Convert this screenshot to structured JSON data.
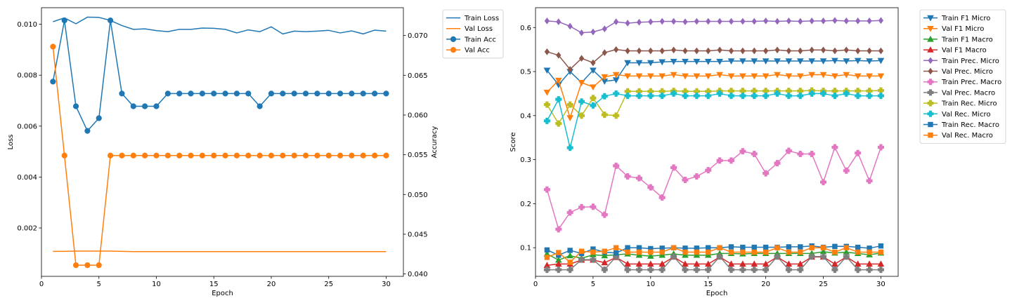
{
  "colors": {
    "blue": "#1f77b4",
    "orange": "#ff7f0e",
    "green": "#2ca02c",
    "red": "#d62728",
    "purple": "#9467bd",
    "brown": "#8c564b",
    "pink": "#e377c2",
    "gray": "#7f7f7f",
    "olive": "#bcbd22",
    "cyan": "#17becf"
  },
  "chart_data": [
    {
      "type": "line",
      "title": "",
      "xlabel": "Epoch",
      "ylabel": "Loss",
      "y2label": "Accuracy",
      "xlim": [
        0,
        31.5
      ],
      "ylim": [
        0.0001,
        0.01065
      ],
      "y2lim": [
        0.0397,
        0.0735
      ],
      "xticks": [
        0,
        5,
        10,
        15,
        20,
        25,
        30
      ],
      "yticks": [
        0.002,
        0.004,
        0.006,
        0.008,
        0.01
      ],
      "yticklabels": [
        "0.002",
        "0.004",
        "0.006",
        "0.008",
        "0.010"
      ],
      "y2ticks": [
        0.04,
        0.045,
        0.05,
        0.055,
        0.06,
        0.065,
        0.07
      ],
      "y2ticklabels": [
        "0.040",
        "0.045",
        "0.050",
        "0.055",
        "0.060",
        "0.065",
        "0.070"
      ],
      "grid": false,
      "legend_placement": "outside-right-top",
      "x": [
        1,
        2,
        3,
        4,
        5,
        6,
        7,
        8,
        9,
        10,
        11,
        12,
        13,
        14,
        15,
        16,
        17,
        18,
        19,
        20,
        21,
        22,
        23,
        24,
        25,
        26,
        27,
        28,
        29,
        30
      ],
      "series": [
        {
          "name": "Train Loss",
          "axis": "left",
          "color": "blue",
          "marker": "none",
          "values": [
            0.0101,
            0.01025,
            0.01002,
            0.01028,
            0.01027,
            0.01015,
            0.00995,
            0.0098,
            0.00982,
            0.00975,
            0.00971,
            0.0098,
            0.0098,
            0.00985,
            0.00984,
            0.0098,
            0.00966,
            0.00978,
            0.00971,
            0.0099,
            0.00962,
            0.00973,
            0.00971,
            0.00973,
            0.00976,
            0.00966,
            0.00974,
            0.00962,
            0.00977,
            0.00973
          ]
        },
        {
          "name": "Val Loss",
          "axis": "left",
          "color": "orange",
          "marker": "none",
          "values": [
            0.00108,
            0.00108,
            0.00109,
            0.00109,
            0.00109,
            0.00109,
            0.00108,
            0.00107,
            0.00107,
            0.00107,
            0.00107,
            0.00107,
            0.00107,
            0.00107,
            0.00107,
            0.00107,
            0.00107,
            0.00107,
            0.00107,
            0.00107,
            0.00107,
            0.00107,
            0.00107,
            0.00107,
            0.00107,
            0.00107,
            0.00107,
            0.00107,
            0.00107,
            0.00107
          ]
        },
        {
          "name": "Train Acc",
          "axis": "right",
          "color": "blue",
          "marker": "circle",
          "values": [
            0.0642,
            0.0719,
            0.0611,
            0.058,
            0.0596,
            0.0719,
            0.0627,
            0.0611,
            0.0611,
            0.0611,
            0.0627,
            0.0627,
            0.0627,
            0.0627,
            0.0627,
            0.0627,
            0.0627,
            0.0627,
            0.0611,
            0.0627,
            0.0627,
            0.0627,
            0.0627,
            0.0627,
            0.0627,
            0.0627,
            0.0627,
            0.0627,
            0.0627,
            0.0627
          ]
        },
        {
          "name": "Val Acc",
          "axis": "right",
          "color": "orange",
          "marker": "circle",
          "values": [
            0.0686,
            0.0549,
            0.0411,
            0.0411,
            0.0411,
            0.0549,
            0.0549,
            0.0549,
            0.0549,
            0.0549,
            0.0549,
            0.0549,
            0.0549,
            0.0549,
            0.0549,
            0.0549,
            0.0549,
            0.0549,
            0.0549,
            0.0549,
            0.0549,
            0.0549,
            0.0549,
            0.0549,
            0.0549,
            0.0549,
            0.0549,
            0.0549,
            0.0549,
            0.0549
          ]
        }
      ]
    },
    {
      "type": "line",
      "title": "",
      "xlabel": "Epoch",
      "ylabel": "Score",
      "xlim": [
        0,
        31.5
      ],
      "ylim": [
        0.035,
        0.645
      ],
      "xticks": [
        0,
        5,
        10,
        15,
        20,
        25,
        30
      ],
      "yticks": [
        0.1,
        0.2,
        0.3,
        0.4,
        0.5,
        0.6
      ],
      "yticklabels": [
        "0.1",
        "0.2",
        "0.3",
        "0.4",
        "0.5",
        "0.6"
      ],
      "grid": false,
      "legend_placement": "outside-right-top",
      "x": [
        1,
        2,
        3,
        4,
        5,
        6,
        7,
        8,
        9,
        10,
        11,
        12,
        13,
        14,
        15,
        16,
        17,
        18,
        19,
        20,
        21,
        22,
        23,
        24,
        25,
        26,
        27,
        28,
        29,
        30
      ],
      "series": [
        {
          "name": "Train F1 Micro",
          "color": "blue",
          "marker": "triangle-down",
          "values": [
            0.503,
            0.47,
            0.5,
            0.475,
            0.503,
            0.478,
            0.481,
            0.52,
            0.52,
            0.52,
            0.522,
            0.523,
            0.523,
            0.523,
            0.523,
            0.523,
            0.524,
            0.524,
            0.524,
            0.524,
            0.524,
            0.524,
            0.524,
            0.524,
            0.524,
            0.525,
            0.524,
            0.525,
            0.524,
            0.525
          ]
        },
        {
          "name": "Val F1 Micro",
          "color": "orange",
          "marker": "triangle-down",
          "values": [
            0.453,
            0.48,
            0.395,
            0.475,
            0.465,
            0.488,
            0.493,
            0.49,
            0.49,
            0.49,
            0.49,
            0.493,
            0.49,
            0.49,
            0.49,
            0.493,
            0.49,
            0.49,
            0.49,
            0.49,
            0.493,
            0.49,
            0.49,
            0.493,
            0.493,
            0.49,
            0.493,
            0.49,
            0.49,
            0.49
          ]
        },
        {
          "name": "Train F1 Macro",
          "color": "green",
          "marker": "triangle-up",
          "values": [
            0.086,
            0.072,
            0.082,
            0.076,
            0.084,
            0.082,
            0.084,
            0.086,
            0.083,
            0.081,
            0.083,
            0.086,
            0.083,
            0.083,
            0.083,
            0.087,
            0.087,
            0.086,
            0.087,
            0.087,
            0.087,
            0.087,
            0.087,
            0.087,
            0.091,
            0.088,
            0.09,
            0.087,
            0.084,
            0.088
          ]
        },
        {
          "name": "Val F1 Macro",
          "color": "red",
          "marker": "triangle-up",
          "values": [
            0.06,
            0.063,
            0.063,
            0.072,
            0.072,
            0.066,
            0.078,
            0.063,
            0.063,
            0.063,
            0.063,
            0.079,
            0.063,
            0.063,
            0.063,
            0.079,
            0.063,
            0.063,
            0.063,
            0.063,
            0.079,
            0.063,
            0.063,
            0.079,
            0.079,
            0.063,
            0.079,
            0.063,
            0.063,
            0.063
          ]
        },
        {
          "name": "Train Prec. Micro",
          "color": "purple",
          "marker": "diamond",
          "values": [
            0.615,
            0.613,
            0.603,
            0.588,
            0.59,
            0.597,
            0.613,
            0.61,
            0.612,
            0.613,
            0.614,
            0.614,
            0.613,
            0.614,
            0.614,
            0.614,
            0.614,
            0.614,
            0.614,
            0.615,
            0.614,
            0.615,
            0.614,
            0.615,
            0.615,
            0.616,
            0.615,
            0.615,
            0.615,
            0.616
          ]
        },
        {
          "name": "Val Prec. Micro",
          "color": "brown",
          "marker": "diamond",
          "values": [
            0.545,
            0.537,
            0.505,
            0.53,
            0.52,
            0.543,
            0.55,
            0.547,
            0.547,
            0.547,
            0.547,
            0.549,
            0.547,
            0.547,
            0.547,
            0.549,
            0.547,
            0.547,
            0.547,
            0.547,
            0.549,
            0.547,
            0.547,
            0.549,
            0.549,
            0.547,
            0.549,
            0.547,
            0.547,
            0.547
          ]
        },
        {
          "name": "Train Prec. Macro",
          "color": "pink",
          "marker": "plus",
          "values": [
            0.232,
            0.142,
            0.18,
            0.192,
            0.193,
            0.175,
            0.286,
            0.262,
            0.258,
            0.237,
            0.214,
            0.282,
            0.254,
            0.262,
            0.276,
            0.298,
            0.298,
            0.319,
            0.313,
            0.269,
            0.292,
            0.32,
            0.313,
            0.313,
            0.249,
            0.328,
            0.275,
            0.315,
            0.252,
            0.328
          ]
        },
        {
          "name": "Val Prec. Macro",
          "color": "gray",
          "marker": "plus",
          "values": [
            0.05,
            0.05,
            0.05,
            0.073,
            0.073,
            0.05,
            0.08,
            0.05,
            0.05,
            0.05,
            0.05,
            0.08,
            0.05,
            0.05,
            0.05,
            0.08,
            0.05,
            0.05,
            0.05,
            0.05,
            0.08,
            0.05,
            0.05,
            0.08,
            0.08,
            0.05,
            0.08,
            0.05,
            0.05,
            0.05
          ]
        },
        {
          "name": "Train Rec. Micro",
          "color": "olive",
          "marker": "plus",
          "values": [
            0.425,
            0.382,
            0.425,
            0.4,
            0.44,
            0.402,
            0.4,
            0.455,
            0.455,
            0.455,
            0.455,
            0.456,
            0.455,
            0.455,
            0.455,
            0.456,
            0.456,
            0.456,
            0.456,
            0.456,
            0.456,
            0.456,
            0.456,
            0.457,
            0.456,
            0.456,
            0.456,
            0.456,
            0.456,
            0.457
          ]
        },
        {
          "name": "Val Rec. Micro",
          "color": "cyan",
          "marker": "plus",
          "values": [
            0.388,
            0.437,
            0.327,
            0.432,
            0.423,
            0.444,
            0.45,
            0.445,
            0.445,
            0.445,
            0.445,
            0.45,
            0.445,
            0.445,
            0.445,
            0.45,
            0.445,
            0.445,
            0.445,
            0.445,
            0.45,
            0.445,
            0.445,
            0.45,
            0.45,
            0.445,
            0.45,
            0.445,
            0.445,
            0.445
          ]
        },
        {
          "name": "Train Rec. Macro",
          "color": "blue",
          "marker": "square",
          "values": [
            0.095,
            0.083,
            0.094,
            0.087,
            0.097,
            0.09,
            0.088,
            0.1,
            0.1,
            0.098,
            0.099,
            0.1,
            0.099,
            0.099,
            0.1,
            0.1,
            0.102,
            0.101,
            0.101,
            0.101,
            0.101,
            0.102,
            0.102,
            0.104,
            0.101,
            0.103,
            0.103,
            0.101,
            0.099,
            0.104
          ]
        },
        {
          "name": "Val Rec. Macro",
          "color": "orange",
          "marker": "square",
          "values": [
            0.078,
            0.089,
            0.067,
            0.092,
            0.09,
            0.092,
            0.1,
            0.09,
            0.09,
            0.09,
            0.09,
            0.1,
            0.09,
            0.09,
            0.09,
            0.1,
            0.09,
            0.09,
            0.09,
            0.09,
            0.1,
            0.09,
            0.09,
            0.1,
            0.1,
            0.09,
            0.1,
            0.09,
            0.09,
            0.09
          ]
        }
      ]
    }
  ]
}
